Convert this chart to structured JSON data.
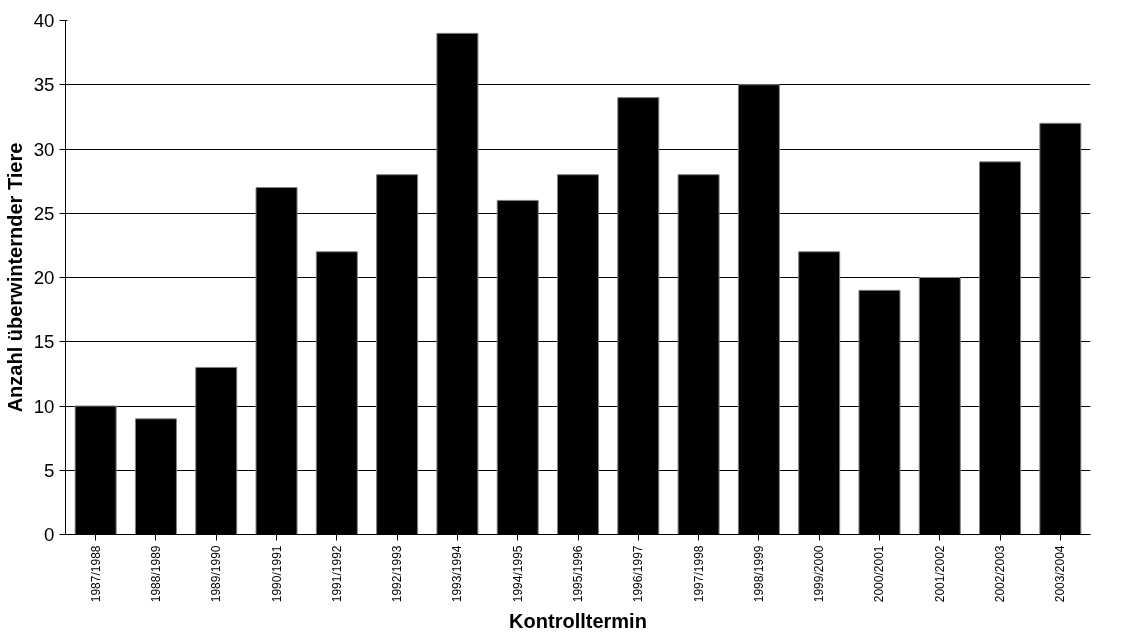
{
  "chart_data": {
    "type": "bar",
    "xlabel": "Kontrolltermin",
    "ylabel": "Anzahl überwinternder Tiere",
    "categories": [
      "1987/1988",
      "1988/1989",
      "1989/1990",
      "1990/1991",
      "1991/1992",
      "1992/1993",
      "1993/1994",
      "1994/1995",
      "1995/1996",
      "1996/1997",
      "1997/1998",
      "1998/1999",
      "1999/2000",
      "2000/2001",
      "2001/2002",
      "2002/2003",
      "2003/2004"
    ],
    "values": [
      10,
      9,
      13,
      27,
      22,
      28,
      39,
      26,
      28,
      34,
      28,
      35,
      22,
      19,
      20,
      29,
      32
    ],
    "color": "#000000",
    "ylim": [
      0,
      40
    ],
    "yticks": [
      0,
      5,
      10,
      15,
      20,
      25,
      30,
      35,
      40
    ],
    "grid": "y"
  }
}
